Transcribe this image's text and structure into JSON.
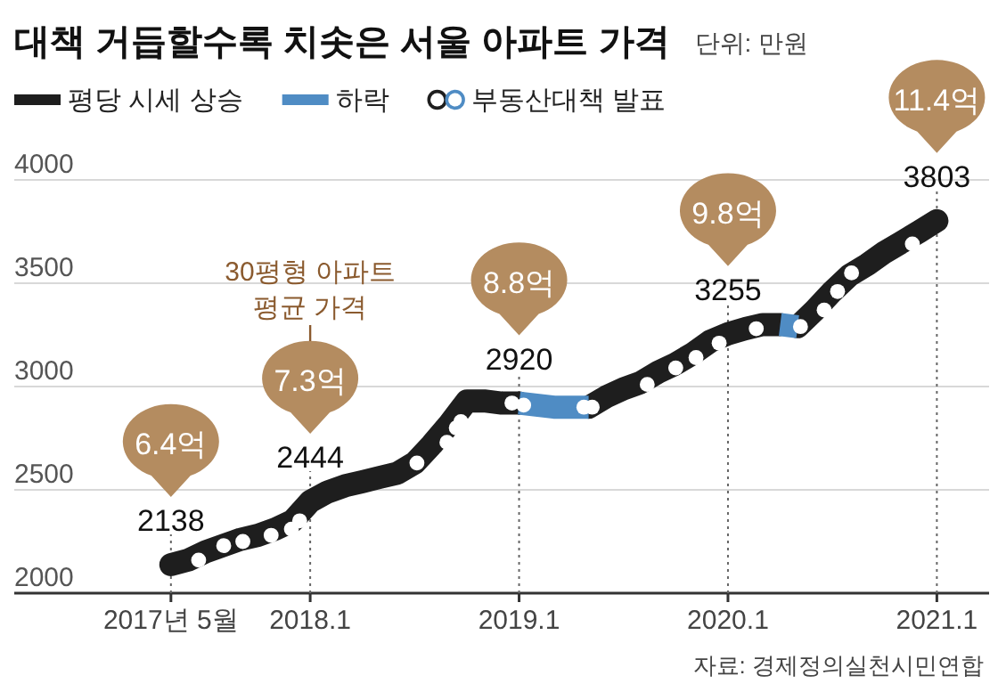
{
  "chart_data": {
    "type": "line",
    "title": "대책 거듭할수록 치솟은 서울 아파트 가격",
    "subtitle": "단위: 만원",
    "xlim": [
      "2016-08",
      "2021-04"
    ],
    "ylim": [
      2000,
      4000
    ],
    "xticks": [
      {
        "value": "2017-05",
        "label": "2017년 5월"
      },
      {
        "value": "2018-01",
        "label": "2018.1"
      },
      {
        "value": "2019-01",
        "label": "2019.1"
      },
      {
        "value": "2020-01",
        "label": "2020.1"
      },
      {
        "value": "2021-01",
        "label": "2021.1"
      }
    ],
    "yticks": [
      2000,
      2500,
      3000,
      3500,
      4000
    ],
    "grid": true,
    "legend": "top",
    "line_style": "solid",
    "series": [
      {
        "name": "평당 시세 상승",
        "type": "line",
        "color": "#1e1e1e",
        "x": [
          "2017-05",
          "2017-06",
          "2017-07",
          "2017-08",
          "2017-09",
          "2017-10",
          "2017-11",
          "2017-12",
          "2018-01",
          "2018-02",
          "2018-03",
          "2018-04",
          "2018-05",
          "2018-06",
          "2018-07",
          "2018-08",
          "2018-09",
          "2018-10",
          "2018-11",
          "2018-12",
          "2019-01",
          null,
          "2019-05",
          "2019-06",
          "2019-07",
          "2019-08",
          "2019-09",
          "2019-10",
          "2019-11",
          "2019-12",
          "2020-01",
          "2020-02",
          "2020-03",
          "2020-04",
          null,
          "2020-05",
          "2020-06",
          "2020-07",
          "2020-08",
          "2020-09",
          "2020-10",
          "2020-11",
          "2020-12",
          "2021-01"
        ],
        "values": [
          2138,
          2160,
          2200,
          2230,
          2260,
          2280,
          2310,
          2350,
          2444,
          2490,
          2520,
          2540,
          2560,
          2580,
          2630,
          2720,
          2820,
          2930,
          2930,
          2920,
          2920,
          null,
          2900,
          2950,
          2990,
          3020,
          3070,
          3110,
          3160,
          3220,
          3255,
          3280,
          3300,
          3300,
          null,
          3290,
          3370,
          3460,
          3540,
          3590,
          3650,
          3700,
          3750,
          3803
        ],
        "value_labels": [
          "2138",
          null,
          null,
          null,
          null,
          null,
          null,
          null,
          "2444",
          null,
          null,
          null,
          null,
          null,
          null,
          null,
          null,
          null,
          null,
          null,
          "2920",
          null,
          null,
          null,
          null,
          null,
          null,
          null,
          null,
          null,
          "3255",
          null,
          null,
          null,
          null,
          null,
          null,
          null,
          null,
          null,
          null,
          null,
          null,
          "3803"
        ]
      },
      {
        "name": "하락",
        "type": "line",
        "color": "#4f8cc4",
        "x": [
          "2019-01",
          "2019-02",
          "2019-03",
          "2019-04",
          "2019-05",
          null,
          "2020-04",
          "2020-05"
        ],
        "values": [
          2920,
          2910,
          2900,
          2900,
          2900,
          null,
          3300,
          3290
        ]
      },
      {
        "name": "부동산대책 발표",
        "type": "scatter",
        "marker": "circle",
        "color": "#ffffff",
        "x": [
          "2017-06-19",
          "2017-08-02",
          "2017-09-05",
          "2017-10-24",
          "2017-11-29",
          "2017-12-13",
          "2018-07-05",
          "2018-08-27",
          "2018-09-13",
          "2018-09-21",
          "2018-12-19",
          "2019-01-09",
          "2019-04-23",
          "2019-05-07",
          "2019-08-12",
          "2019-10-01",
          "2019-11-06",
          "2019-12-16",
          "2020-02-20",
          "2020-05-06",
          "2020-06-17",
          "2020-07-10",
          "2020-08-04",
          "2020-11-19"
        ],
        "values": [
          2160,
          2230,
          2250,
          2280,
          2310,
          2350,
          2630,
          2730,
          2800,
          2830,
          2920,
          2910,
          2900,
          2900,
          3010,
          3090,
          3140,
          3210,
          3280,
          3290,
          3370,
          3460,
          3550,
          3690
        ]
      }
    ],
    "annotations": [
      "6.4억",
      "7.3억",
      "30평형 아파트 평균 가격",
      "8.8억",
      "9.8억",
      "11.4억",
      "자료: 경제정의실천시민연합"
    ]
  }
}
